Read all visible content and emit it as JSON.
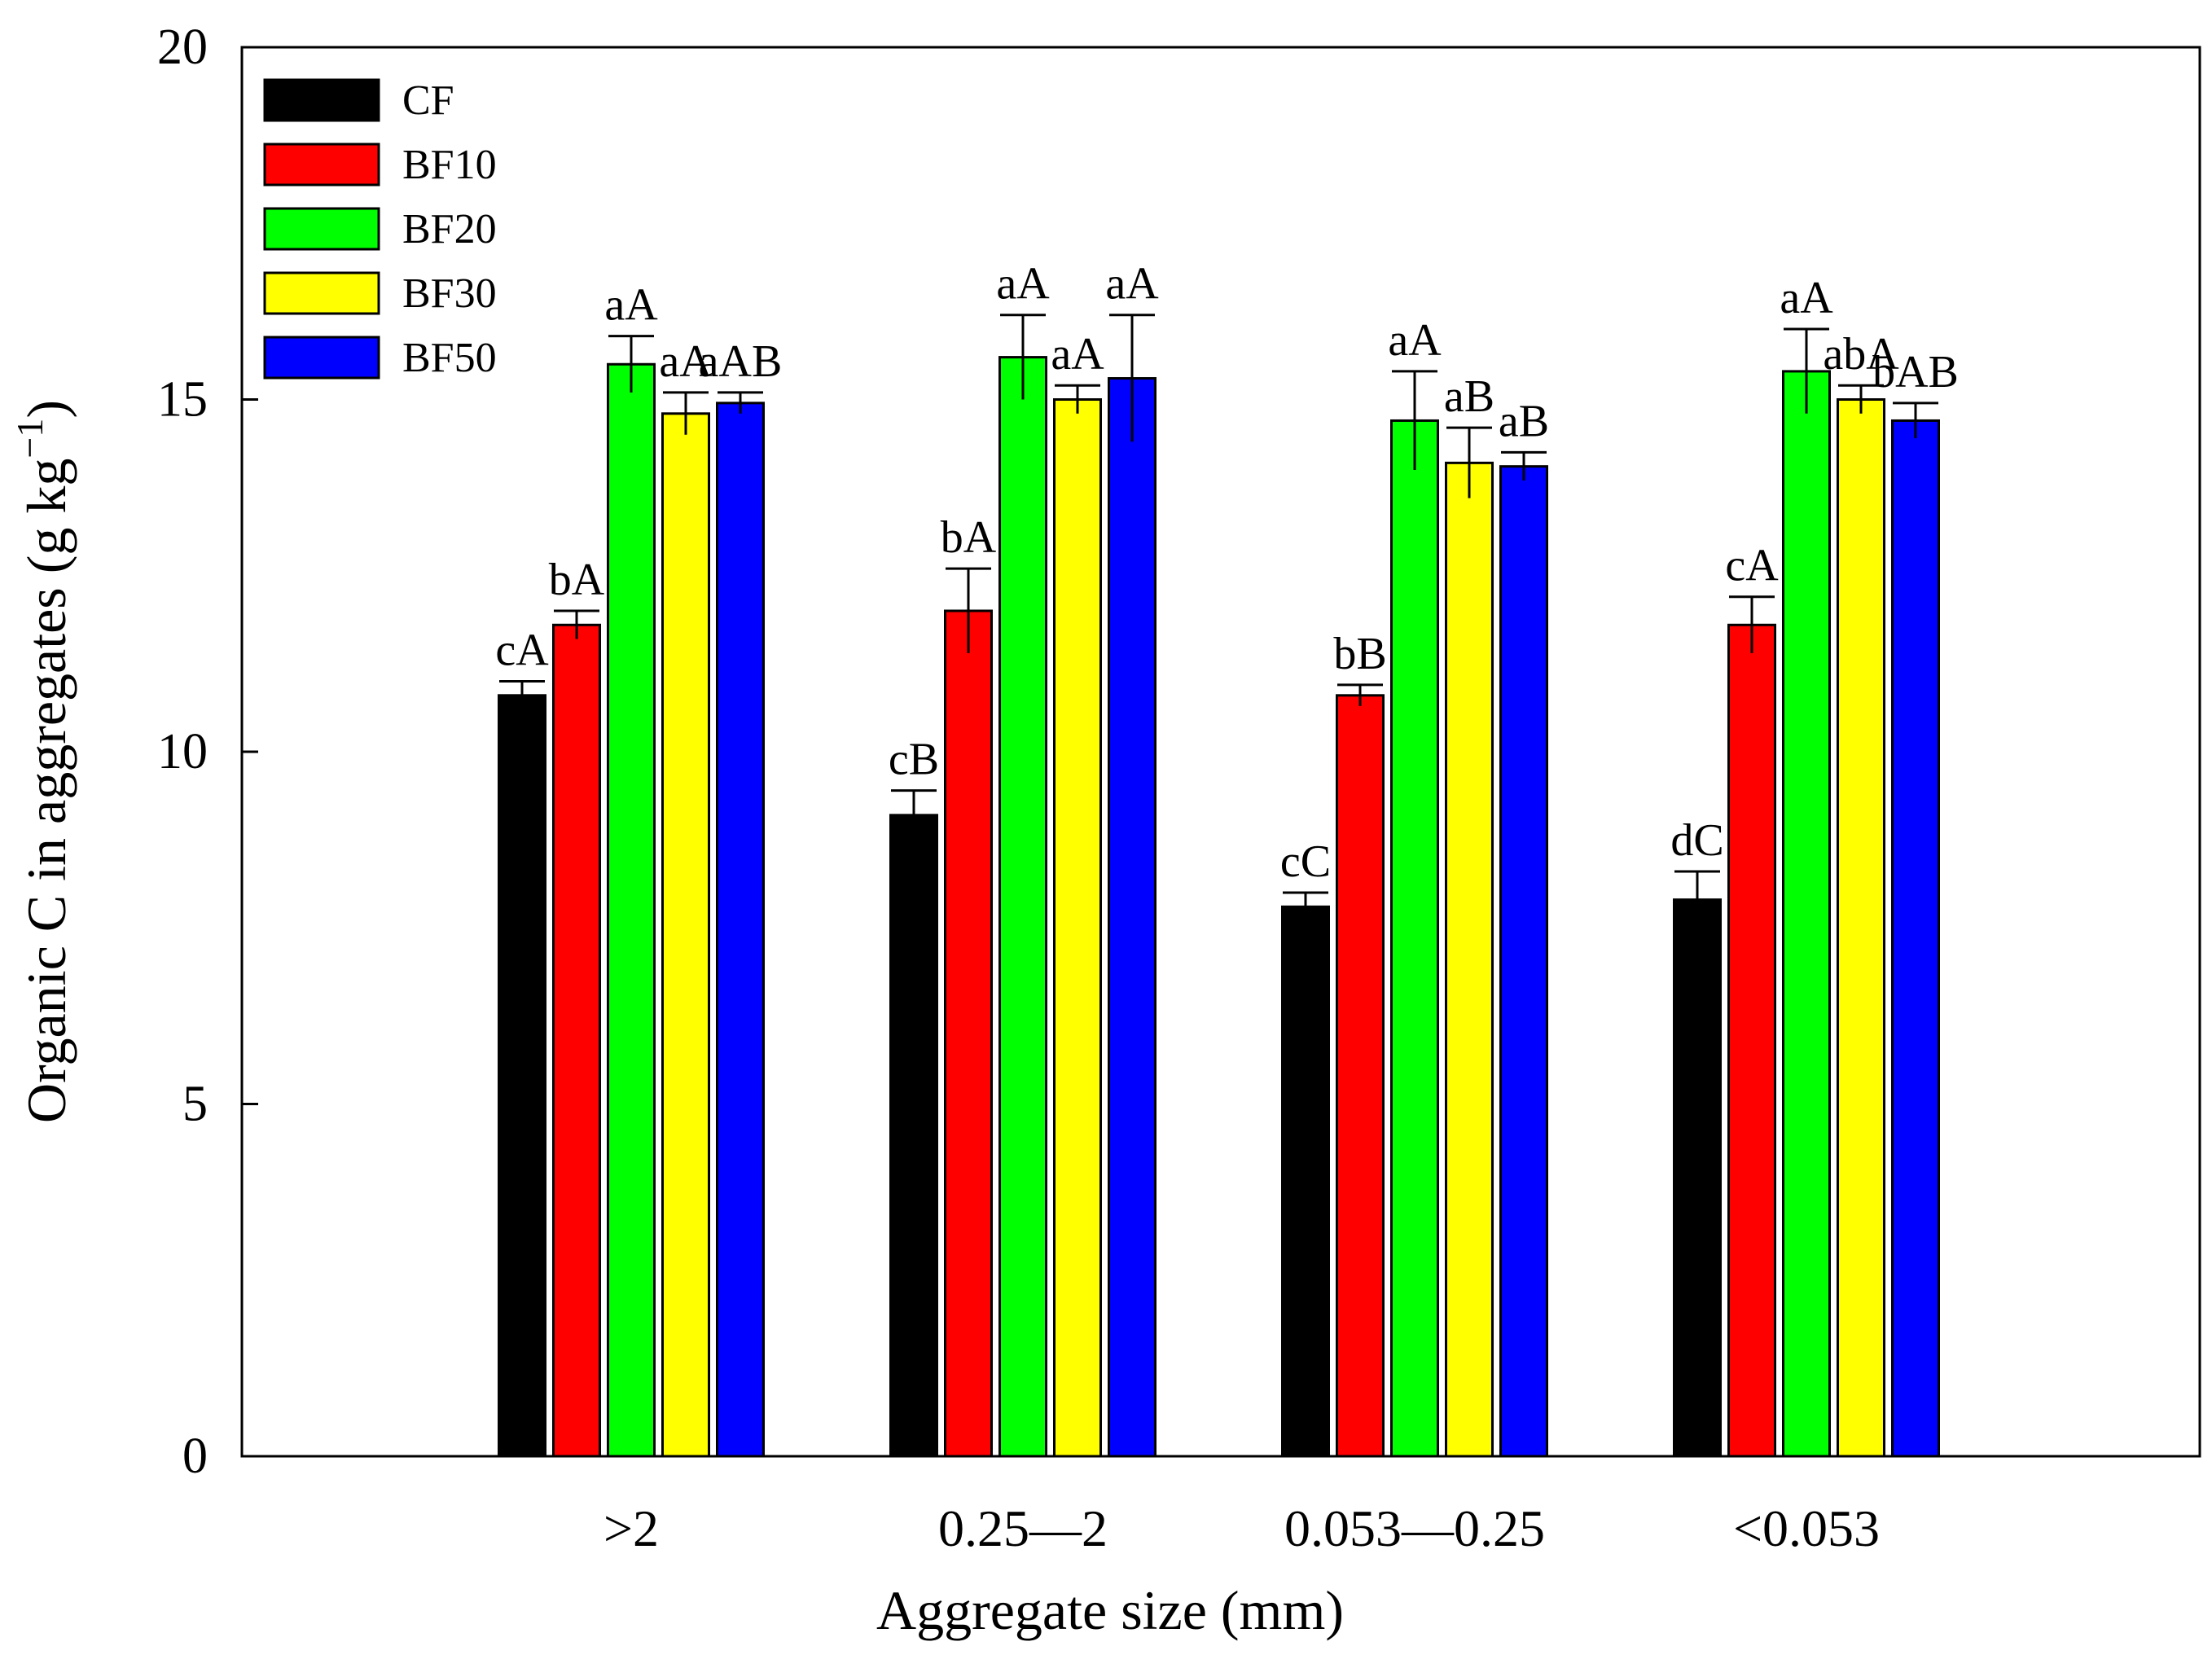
{
  "chart_data": {
    "type": "bar",
    "title": "",
    "xlabel": "Aggregate size (mm)",
    "ylabel": "Organic C in aggregates (g kg",
    "ylabel_superscript": "−1",
    "ylabel_close": ")",
    "ylim": [
      0,
      20
    ],
    "yticks": [
      "0",
      "5",
      "10",
      "15",
      "20"
    ],
    "grid": false,
    "legend_position": "top-left",
    "categories": [
      ">2",
      "0.25—2",
      "0.053—0.25",
      "<0.053"
    ],
    "series": [
      {
        "name": "CF",
        "color": "#000000",
        "values": [
          10.8,
          9.1,
          7.8,
          7.9
        ],
        "errors": [
          0.2,
          0.35,
          0.2,
          0.4
        ],
        "labels": [
          "cA",
          "cB",
          "cC",
          "dC"
        ]
      },
      {
        "name": "BF10",
        "color": "#ff0000",
        "values": [
          11.8,
          12.0,
          10.8,
          11.8
        ],
        "errors": [
          0.2,
          0.6,
          0.15,
          0.4
        ],
        "labels": [
          "bA",
          "bA",
          "bB",
          "cA"
        ]
      },
      {
        "name": "BF20",
        "color": "#00ff00",
        "values": [
          15.5,
          15.6,
          14.7,
          15.4
        ],
        "errors": [
          0.4,
          0.6,
          0.7,
          0.6
        ],
        "labels": [
          "aA",
          "aA",
          "aA",
          "aA"
        ]
      },
      {
        "name": "BF30",
        "color": "#ffff00",
        "values": [
          14.8,
          15.0,
          14.1,
          15.0
        ],
        "errors": [
          0.3,
          0.2,
          0.5,
          0.2
        ],
        "labels": [
          "aA",
          "aA",
          "aB",
          "abA"
        ]
      },
      {
        "name": "BF50",
        "color": "#0000ff",
        "values": [
          14.95,
          15.3,
          14.05,
          14.7
        ],
        "errors": [
          0.15,
          0.9,
          0.2,
          0.25
        ],
        "labels": [
          "aAB",
          "aA",
          "aB",
          "bAB"
        ]
      }
    ]
  }
}
